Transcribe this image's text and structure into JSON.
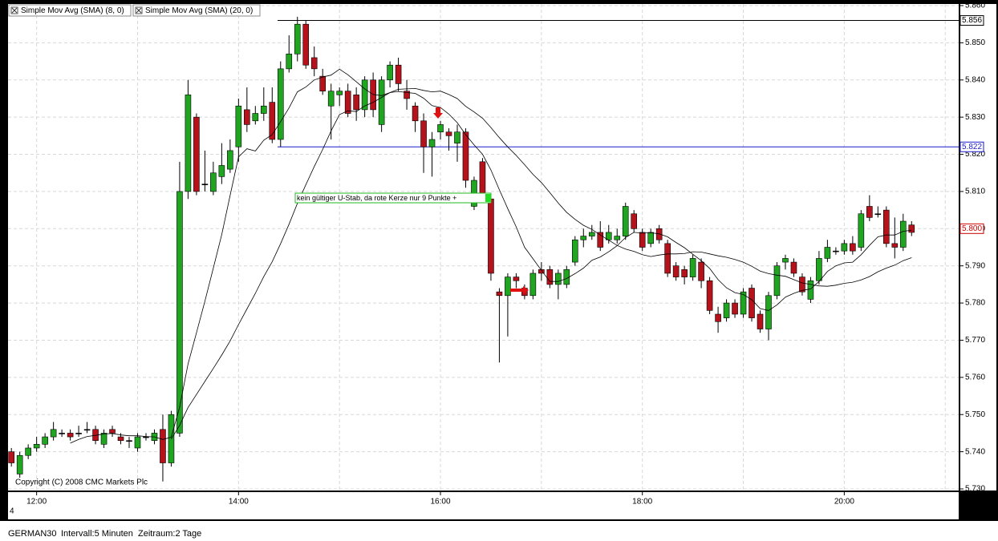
{
  "chart_data": {
    "type": "candlestick",
    "x": [
      "11:45",
      "11:50",
      "11:55",
      "12:00",
      "12:05",
      "12:10",
      "12:15",
      "12:20",
      "12:25",
      "12:30",
      "12:35",
      "12:40",
      "12:45",
      "12:50",
      "12:55",
      "13:00",
      "13:05",
      "13:10",
      "13:15",
      "13:20",
      "13:25",
      "13:30",
      "13:35",
      "13:40",
      "13:45",
      "13:50",
      "13:55",
      "14:00",
      "14:05",
      "14:10",
      "14:15",
      "14:20",
      "14:25",
      "14:30",
      "14:35",
      "14:40",
      "14:45",
      "14:50",
      "14:55",
      "15:00",
      "15:05",
      "15:10",
      "15:15",
      "15:20",
      "15:25",
      "15:30",
      "15:35",
      "15:40",
      "15:45",
      "15:50",
      "15:55",
      "16:00",
      "16:05",
      "16:10",
      "16:15",
      "16:20",
      "16:25",
      "16:30",
      "16:35",
      "16:40",
      "16:45",
      "16:50",
      "16:55",
      "17:00",
      "17:05",
      "17:10",
      "17:15",
      "17:20",
      "17:25",
      "17:30",
      "17:35",
      "17:40",
      "17:45",
      "17:50",
      "17:55",
      "18:00",
      "18:05",
      "18:10",
      "18:15",
      "18:20",
      "18:25",
      "18:30",
      "18:35",
      "18:40",
      "18:45",
      "18:50",
      "18:55",
      "19:00",
      "19:05",
      "19:10",
      "19:15",
      "19:20",
      "19:25",
      "19:30",
      "19:35",
      "19:40",
      "19:45",
      "19:50",
      "19:55",
      "20:00",
      "20:05",
      "20:10",
      "20:15",
      "20:20",
      "20:25",
      "20:30",
      "20:35",
      "20:40"
    ],
    "open": [
      5740,
      5734,
      5739,
      5741,
      5742,
      5744,
      5745,
      5745,
      5745,
      5746,
      5746,
      5742,
      5746,
      5744,
      5743,
      5741,
      5744,
      5743,
      5746,
      5737,
      5745,
      5810,
      5830,
      5812,
      5810,
      5814,
      5816,
      5822,
      5832,
      5829,
      5831,
      5834,
      5824,
      5843,
      5847,
      5855,
      5846,
      5841,
      5833,
      5836,
      5837,
      5836,
      5832,
      5840,
      5828,
      5840,
      5844,
      5837,
      5833,
      5829,
      5822,
      5826,
      5826,
      5823,
      5826,
      5806,
      5818,
      5808,
      5783,
      5782,
      5787,
      5784,
      5782,
      5789,
      5789,
      5785,
      5785,
      5791,
      5797,
      5798,
      5799,
      5797,
      5797,
      5798,
      5804,
      5799,
      5796,
      5800,
      5796,
      5790,
      5789,
      5787,
      5791,
      5786,
      5777,
      5776,
      5780,
      5777,
      5784,
      5777,
      5773,
      5782,
      5791,
      5791,
      5787,
      5781,
      5786,
      5792,
      5794,
      5794,
      5796,
      5795,
      5806,
      5804,
      5805,
      5796,
      5795,
      5801
    ],
    "high": [
      5741,
      5740,
      5742,
      5744,
      5745,
      5748,
      5746,
      5746,
      5747,
      5748,
      5747,
      5746,
      5747,
      5745,
      5744,
      5745,
      5745,
      5746,
      5750,
      5751,
      5818,
      5840,
      5831,
      5821,
      5818,
      5823,
      5824,
      5835,
      5838,
      5833,
      5838,
      5838,
      5845,
      5852,
      5857,
      5856,
      5849,
      5843,
      5839,
      5838,
      5839,
      5838,
      5841,
      5842,
      5841,
      5845,
      5846,
      5840,
      5834,
      5831,
      5826,
      5829,
      5827,
      5828,
      5827,
      5814,
      5819,
      5809,
      5784,
      5788,
      5788,
      5785,
      5789,
      5791,
      5790,
      5789,
      5790,
      5798,
      5800,
      5801,
      5802,
      5801,
      5800,
      5807,
      5805,
      5800,
      5800,
      5801,
      5797,
      5791,
      5790,
      5793,
      5792,
      5787,
      5779,
      5781,
      5781,
      5784,
      5785,
      5778,
      5783,
      5791,
      5793,
      5792,
      5788,
      5787,
      5794,
      5797,
      5795,
      5797,
      5798,
      5805,
      5809,
      5806,
      5806,
      5803,
      5804,
      5802
    ],
    "low": [
      5736,
      5733,
      5738,
      5740,
      5741,
      5743,
      5744,
      5743,
      5744,
      5745,
      5742,
      5741,
      5744,
      5742,
      5741,
      5740,
      5743,
      5742,
      5732,
      5736,
      5744,
      5808,
      5809,
      5810,
      5809,
      5812,
      5815,
      5818,
      5826,
      5828,
      5829,
      5823,
      5822,
      5842,
      5845,
      5843,
      5841,
      5836,
      5824,
      5833,
      5830,
      5829,
      5830,
      5830,
      5826,
      5838,
      5837,
      5832,
      5826,
      5815,
      5814,
      5824,
      5821,
      5818,
      5811,
      5805,
      5807,
      5786,
      5764,
      5771,
      5784,
      5781,
      5781,
      5786,
      5784,
      5781,
      5784,
      5790,
      5795,
      5797,
      5794,
      5796,
      5796,
      5797,
      5799,
      5794,
      5795,
      5796,
      5787,
      5786,
      5785,
      5786,
      5784,
      5777,
      5772,
      5775,
      5776,
      5776,
      5775,
      5772,
      5770,
      5781,
      5789,
      5787,
      5782,
      5780,
      5785,
      5791,
      5793,
      5793,
      5793,
      5794,
      5802,
      5803,
      5795,
      5792,
      5794,
      5798
    ],
    "close": [
      5737,
      5739,
      5741,
      5742,
      5744,
      5746,
      5745,
      5744,
      5745,
      5746,
      5743,
      5745,
      5745,
      5743,
      5743,
      5744,
      5744,
      5745,
      5737,
      5750,
      5810,
      5836,
      5810,
      5812,
      5815,
      5817,
      5821,
      5833,
      5828,
      5831,
      5833,
      5824,
      5843,
      5847,
      5855,
      5844,
      5843,
      5837,
      5837,
      5837,
      5831,
      5832,
      5840,
      5832,
      5840,
      5844,
      5839,
      5835,
      5829,
      5822,
      5824,
      5828,
      5825,
      5826,
      5813,
      5813,
      5809,
      5788,
      5782,
      5787,
      5786,
      5782,
      5788,
      5788,
      5785,
      5788,
      5789,
      5797,
      5798,
      5799,
      5795,
      5799,
      5798,
      5806,
      5800,
      5795,
      5799,
      5797,
      5788,
      5787,
      5787,
      5792,
      5786,
      5778,
      5775,
      5780,
      5777,
      5783,
      5776,
      5773,
      5782,
      5790,
      5792,
      5788,
      5783,
      5786,
      5792,
      5795,
      5794,
      5796,
      5794,
      5804,
      5803,
      5804,
      5796,
      5795,
      5802,
      5799
    ],
    "up_color": "#1fa51f",
    "down_color": "#b5121b",
    "series": [
      {
        "name": "Simple Mov Avg (SMA) (8, 0)",
        "color": "#000000",
        "values": [
          null,
          null,
          null,
          null,
          null,
          null,
          null,
          5742.3,
          5743.3,
          5744.1,
          5744.4,
          5744.8,
          5744.9,
          5744.5,
          5744.3,
          5744.3,
          5744.1,
          5744.0,
          5743.3,
          5743.9,
          5752.0,
          5763.6,
          5772.0,
          5780.5,
          5789.4,
          5798.4,
          5808.9,
          5819.3,
          5821.5,
          5820.9,
          5823.8,
          5825.3,
          5828.8,
          5832.5,
          5836.8,
          5838.1,
          5840.0,
          5840.8,
          5841.3,
          5842.9,
          5841.4,
          5839.5,
          5837.6,
          5836.1,
          5835.8,
          5836.6,
          5836.9,
          5836.6,
          5836.4,
          5835.1,
          5833.1,
          5832.6,
          5830.8,
          5828.5,
          5825.3,
          5822.5,
          5820.0,
          5815.8,
          5810.5,
          5805.4,
          5800.5,
          5795.0,
          5791.9,
          5788.8,
          5785.8,
          5785.8,
          5786.6,
          5787.9,
          5789.4,
          5791.5,
          5792.4,
          5793.8,
          5795.4,
          5797.6,
          5799.0,
          5798.8,
          5798.9,
          5798.6,
          5797.8,
          5796.3,
          5794.9,
          5793.1,
          5791.4,
          5789.3,
          5786.3,
          5784.1,
          5782.8,
          5782.3,
          5780.9,
          5778.5,
          5778.0,
          5779.5,
          5781.6,
          5782.6,
          5783.4,
          5783.8,
          5785.8,
          5788.5,
          5790.0,
          5790.8,
          5791.0,
          5793.0,
          5795.5,
          5797.8,
          5798.3,
          5798.3,
          5799.3,
          5799.6
        ]
      },
      {
        "name": "Simple Mov Avg (SMA) (20, 0)",
        "color": "#000000",
        "values": [
          null,
          null,
          null,
          null,
          null,
          null,
          null,
          null,
          null,
          null,
          null,
          null,
          null,
          null,
          null,
          null,
          null,
          null,
          null,
          5743.4,
          5747.1,
          5751.9,
          5755.4,
          5758.9,
          5762.4,
          5766.0,
          5769.8,
          5774.2,
          5778.4,
          5782.6,
          5787.1,
          5791.1,
          5796.0,
          5801.2,
          5806.8,
          5811.8,
          5816.7,
          5821.3,
          5826.3,
          5830.7,
          5831.7,
          5831.5,
          5833.0,
          5834.0,
          5835.3,
          5836.6,
          5837.5,
          5837.6,
          5837.7,
          5837.2,
          5836.8,
          5837.0,
          5836.1,
          5835.0,
          5832.9,
          5831.4,
          5829.7,
          5827.2,
          5824.5,
          5822.0,
          5819.7,
          5817.2,
          5814.6,
          5812.4,
          5809.7,
          5806.9,
          5804.4,
          5802.5,
          5800.9,
          5799.8,
          5798.3,
          5796.9,
          5795.5,
          5794.5,
          5793.9,
          5793.0,
          5792.5,
          5792.9,
          5793.2,
          5793.2,
          5793.3,
          5793.8,
          5793.7,
          5793.2,
          5792.7,
          5792.3,
          5791.7,
          5791.0,
          5789.9,
          5788.6,
          5787.9,
          5787.5,
          5787.2,
          5786.3,
          5785.4,
          5785.0,
          5784.6,
          5784.5,
          5784.8,
          5785.3,
          5785.6,
          5786.2,
          5787.1,
          5788.4,
          5789.4,
          5790.2,
          5791.4,
          5792.2
        ]
      }
    ],
    "xlim": [
      "11:43",
      "21:08"
    ],
    "xticks": [
      "12:00",
      "14:00",
      "16:00",
      "18:00",
      "20:00"
    ],
    "ylim": [
      5730,
      5860
    ],
    "yticks": [
      {
        "value": 5730,
        "label": "5.730"
      },
      {
        "value": 5740,
        "label": "5.740"
      },
      {
        "value": 5750,
        "label": "5.750"
      },
      {
        "value": 5760,
        "label": "5.760"
      },
      {
        "value": 5770,
        "label": "5.770"
      },
      {
        "value": 5780,
        "label": "5.780"
      },
      {
        "value": 5790,
        "label": "5.790"
      },
      {
        "value": 5800,
        "label": "5.800"
      },
      {
        "value": 5810,
        "label": "5.810"
      },
      {
        "value": 5820,
        "label": "5.820"
      },
      {
        "value": 5830,
        "label": "5.830"
      },
      {
        "value": 5840,
        "label": "5.840"
      },
      {
        "value": 5850,
        "label": "5.850"
      },
      {
        "value": 5860,
        "label": "5.860"
      }
    ],
    "grid": true,
    "hlines": [
      {
        "value": 5856,
        "label": "5.856",
        "color": "#000000"
      },
      {
        "value": 5822,
        "label": "5.822",
        "color": "#1a1acc"
      }
    ],
    "last_price": {
      "value": 5800,
      "label": "5.800",
      "color": "#cc0000"
    },
    "annotation": "kein gültiger U-Stab, da rote Kerze nur 9 Punkte +",
    "copyright": "Copyright (C) 2008 CMC Markets Plc"
  },
  "corner_label": "4",
  "status": {
    "symbol": "GERMAN30",
    "interval": "Intervall:5 Minuten",
    "range": "Zeitraum:2 Tage"
  }
}
